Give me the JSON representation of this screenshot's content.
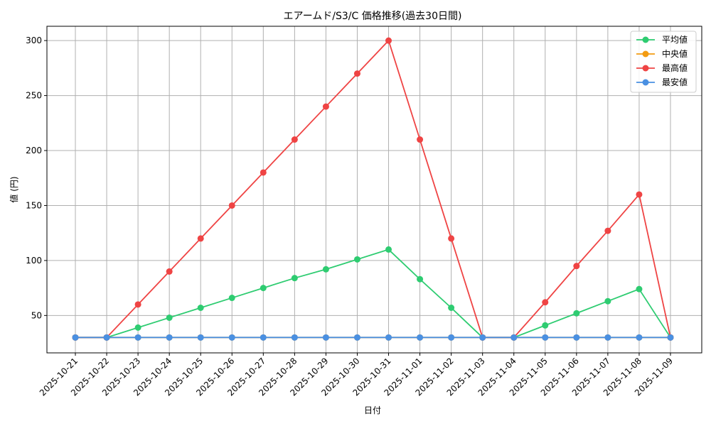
{
  "chart_data": {
    "type": "line",
    "title": "エアームド/S3/C 価格推移(過去30日間)",
    "xlabel": "日付",
    "ylabel": "値 (円)",
    "ylim": [
      16,
      313
    ],
    "yticks": [
      50,
      100,
      150,
      200,
      250,
      300
    ],
    "grid": true,
    "legend_position": "top-right",
    "categories": [
      "2025-10-21",
      "2025-10-22",
      "2025-10-23",
      "2025-10-24",
      "2025-10-25",
      "2025-10-26",
      "2025-10-27",
      "2025-10-28",
      "2025-10-29",
      "2025-10-30",
      "2025-10-31",
      "2025-11-01",
      "2025-11-02",
      "2025-11-03",
      "2025-11-04",
      "2025-11-05",
      "2025-11-06",
      "2025-11-07",
      "2025-11-08",
      "2025-11-09"
    ],
    "series": [
      {
        "name": "平均値",
        "color": "#2ecc71",
        "values": [
          30,
          30,
          39,
          48,
          57,
          66,
          75,
          84,
          92,
          101,
          110,
          83,
          57,
          30,
          30,
          41,
          52,
          63,
          74,
          30
        ]
      },
      {
        "name": "中央値",
        "color": "#f39c12",
        "values": [
          30,
          30,
          30,
          30,
          30,
          30,
          30,
          30,
          30,
          30,
          30,
          30,
          30,
          30,
          30,
          30,
          30,
          30,
          30,
          30
        ]
      },
      {
        "name": "最高値",
        "color": "#ef4444",
        "values": [
          30,
          30,
          60,
          90,
          120,
          150,
          180,
          210,
          240,
          270,
          300,
          210,
          120,
          30,
          30,
          62,
          95,
          127,
          160,
          30
        ]
      },
      {
        "name": "最安値",
        "color": "#4a90e2",
        "values": [
          30,
          30,
          30,
          30,
          30,
          30,
          30,
          30,
          30,
          30,
          30,
          30,
          30,
          30,
          30,
          30,
          30,
          30,
          30,
          30
        ]
      }
    ]
  }
}
